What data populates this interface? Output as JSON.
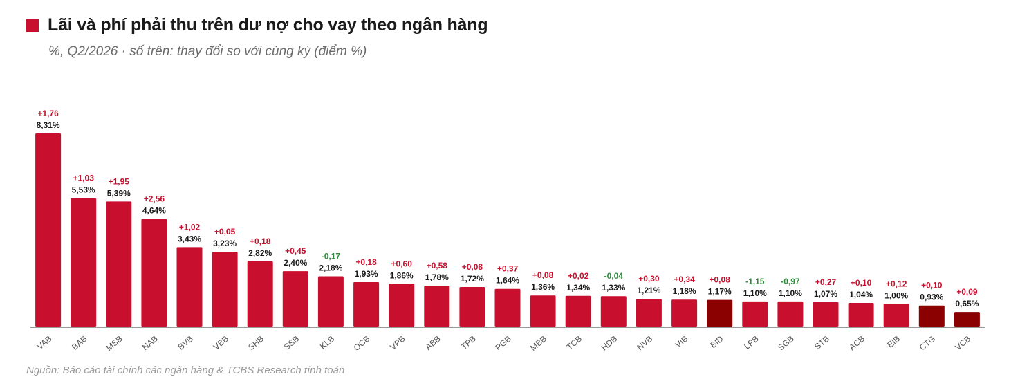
{
  "colors": {
    "accent": "#c8102e",
    "highlight": "#8b0000",
    "positive": "#c8102e",
    "negative": "#2e8b3e",
    "value_text": "#1a1a1a",
    "axis": "#555555"
  },
  "header": {
    "title": "Lãi và phí phải thu trên dư nợ cho vay theo ngân hàng",
    "subtitle": "%, Q2/2026 · số trên: thay đổi so với cùng kỳ (điểm %)"
  },
  "footer": {
    "source": "Nguồn: Báo cáo tài chính các ngân hàng & TCBS Research tính toán"
  },
  "chart_data": {
    "type": "bar",
    "title": "Lãi và phí phải thu trên dư nợ cho vay theo ngân hàng",
    "subtitle": "%, Q2/2026 · số trên: thay đổi so với cùng kỳ (điểm %)",
    "xlabel": "",
    "ylabel": "",
    "ylim": [
      0,
      8.8
    ],
    "grid": false,
    "categories": [
      "VAB",
      "BAB",
      "MSB",
      "NAB",
      "BVB",
      "VBB",
      "SHB",
      "SSB",
      "KLB",
      "OCB",
      "VPB",
      "ABB",
      "TPB",
      "PGB",
      "MBB",
      "TCB",
      "HDB",
      "NVB",
      "VIB",
      "BID",
      "LPB",
      "SGB",
      "STB",
      "ACB",
      "EIB",
      "CTG",
      "VCB"
    ],
    "values": [
      8.31,
      5.53,
      5.39,
      4.64,
      3.43,
      3.23,
      2.82,
      2.4,
      2.18,
      1.93,
      1.86,
      1.78,
      1.72,
      1.64,
      1.36,
      1.34,
      1.33,
      1.21,
      1.18,
      1.17,
      1.1,
      1.1,
      1.07,
      1.04,
      1.0,
      0.93,
      0.65
    ],
    "value_labels": [
      "8,31%",
      "5,53%",
      "5,39%",
      "4,64%",
      "3,43%",
      "3,23%",
      "2,82%",
      "2,40%",
      "2,18%",
      "1,93%",
      "1,86%",
      "1,78%",
      "1,72%",
      "1,64%",
      "1,36%",
      "1,34%",
      "1,33%",
      "1,21%",
      "1,18%",
      "1,17%",
      "1,10%",
      "1,10%",
      "1,07%",
      "1,04%",
      "1,00%",
      "0,93%",
      "0,65%"
    ],
    "yoy_change": [
      1.76,
      1.03,
      1.95,
      2.56,
      1.02,
      0.05,
      0.18,
      0.45,
      -0.17,
      0.18,
      0.6,
      0.58,
      0.08,
      0.37,
      0.08,
      0.02,
      -0.04,
      0.3,
      0.34,
      0.08,
      -1.15,
      -0.97,
      0.27,
      0.1,
      0.12,
      0.1,
      0.09
    ],
    "yoy_labels": [
      "+1,76",
      "+1,03",
      "+1,95",
      "+2,56",
      "+1,02",
      "+0,05",
      "+0,18",
      "+0,45",
      "-0,17",
      "+0,18",
      "+0,60",
      "+0,58",
      "+0,08",
      "+0,37",
      "+0,08",
      "+0,02",
      "-0,04",
      "+0,30",
      "+0,34",
      "+0,08",
      "-1,15",
      "-0,97",
      "+0,27",
      "+0,10",
      "+0,12",
      "+0,10",
      "+0,09"
    ],
    "highlighted": [
      "BID",
      "CTG",
      "VCB"
    ]
  }
}
